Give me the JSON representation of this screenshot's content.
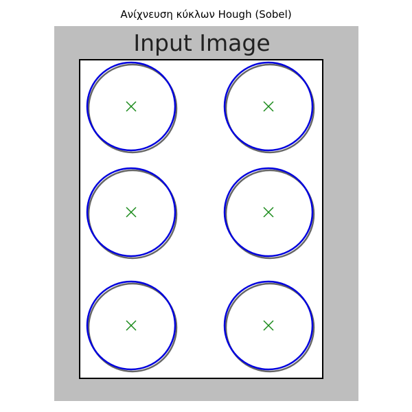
{
  "figure": {
    "title": "Ανίχνευση κύκλων Hough (Sobel)"
  },
  "image": {
    "heading": "Input Image",
    "background_color": "#bebebe",
    "panel_color": "#ffffff",
    "border_color": "#000000"
  },
  "detections": {
    "circle_color": "#0000dd",
    "center_color": "#1a8a1a",
    "center_marker": "x",
    "count": 6,
    "circles": [
      {
        "row": 1,
        "col": 1
      },
      {
        "row": 1,
        "col": 2
      },
      {
        "row": 2,
        "col": 1
      },
      {
        "row": 2,
        "col": 2
      },
      {
        "row": 3,
        "col": 1
      },
      {
        "row": 3,
        "col": 2
      }
    ]
  }
}
